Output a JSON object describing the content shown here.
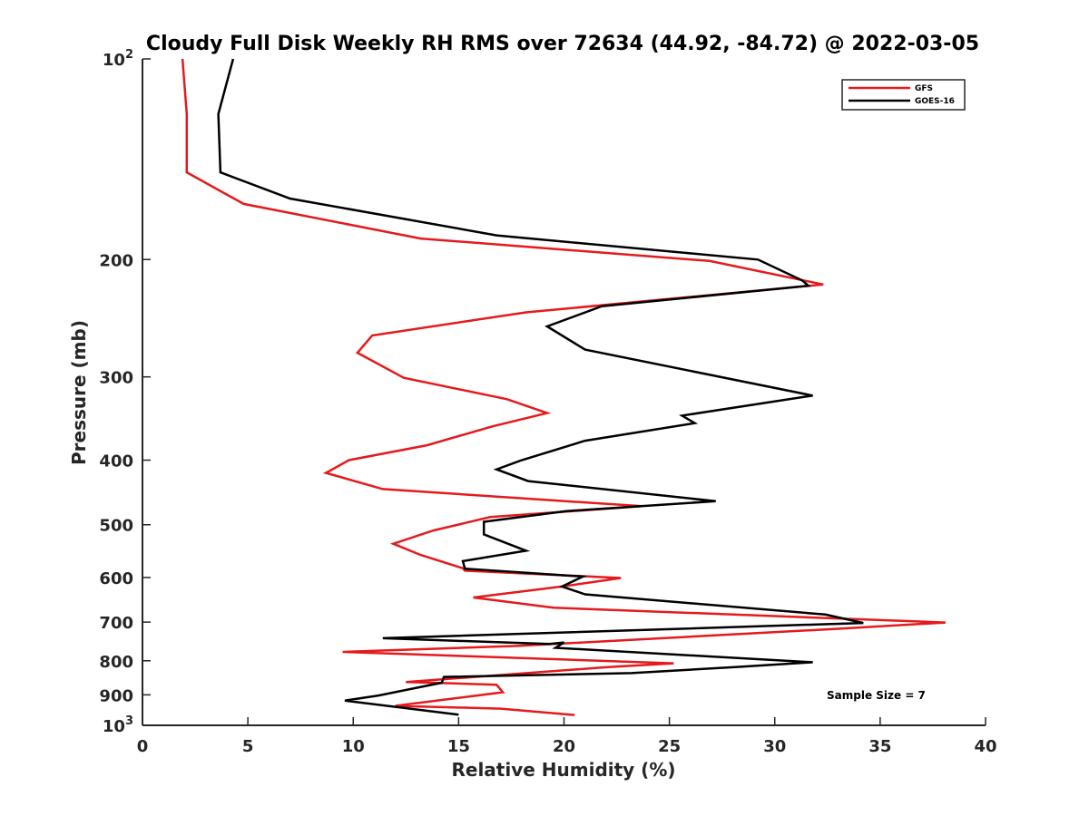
{
  "chart_data": {
    "type": "line",
    "title": "Cloudy Full Disk Weekly RH RMS over 72634 (44.92, -84.72) @ 2022-03-05",
    "xlabel": "Relative Humidity (%)",
    "ylabel": "Pressure (mb)",
    "xlim": [
      0,
      40
    ],
    "ylim": [
      100,
      1000
    ],
    "y_scale": "log",
    "y_reversed": true,
    "x_ticks": [
      0,
      5,
      10,
      15,
      20,
      25,
      30,
      35,
      40
    ],
    "y_ticks": [
      {
        "value": 100,
        "base": "10",
        "exp": "2"
      },
      {
        "value": 200,
        "label": "200"
      },
      {
        "value": 300,
        "label": "300"
      },
      {
        "value": 400,
        "label": "400"
      },
      {
        "value": 500,
        "label": "500"
      },
      {
        "value": 600,
        "label": "600"
      },
      {
        "value": 700,
        "label": "700"
      },
      {
        "value": 800,
        "label": "800"
      },
      {
        "value": 900,
        "label": "900"
      },
      {
        "value": 1000,
        "base": "10",
        "exp": "3"
      }
    ],
    "grid": false,
    "legend_position": "top-right",
    "annotation": "Sample Size = 7",
    "series": [
      {
        "name": "GFS",
        "color": "#e41a1c",
        "points": [
          [
            1.9,
            100
          ],
          [
            2.1,
            121
          ],
          [
            2.1,
            148
          ],
          [
            4.8,
            165
          ],
          [
            13.2,
            186
          ],
          [
            26.9,
            201
          ],
          [
            32.3,
            218
          ],
          [
            18.2,
            240
          ],
          [
            10.9,
            260
          ],
          [
            10.2,
            276
          ],
          [
            12.4,
            301
          ],
          [
            17.3,
            324
          ],
          [
            19.2,
            340
          ],
          [
            16.6,
            356
          ],
          [
            13.5,
            380
          ],
          [
            9.8,
            400
          ],
          [
            8.7,
            418
          ],
          [
            11.4,
            442
          ],
          [
            23.7,
            469
          ],
          [
            16.5,
            487
          ],
          [
            13.8,
            510
          ],
          [
            11.9,
            534
          ],
          [
            13.2,
            555
          ],
          [
            15.2,
            581
          ],
          [
            15.3,
            586
          ],
          [
            22.7,
            601
          ],
          [
            19.9,
            619
          ],
          [
            15.7,
            643
          ],
          [
            19.5,
            666
          ],
          [
            38.1,
            701
          ],
          [
            33.1,
            716
          ],
          [
            17.8,
            760
          ],
          [
            9.5,
            776
          ],
          [
            25.2,
            807
          ],
          [
            22.0,
            818
          ],
          [
            12.5,
            861
          ],
          [
            16.8,
            869
          ],
          [
            17.1,
            892
          ],
          [
            12.0,
            935
          ],
          [
            17.0,
            944
          ],
          [
            20.5,
            965
          ]
        ]
      },
      {
        "name": "GOES-16",
        "color": "#000000",
        "points": [
          [
            4.3,
            100
          ],
          [
            3.6,
            121
          ],
          [
            3.7,
            148
          ],
          [
            7.0,
            162
          ],
          [
            16.8,
            184
          ],
          [
            29.2,
            200
          ],
          [
            31.3,
            215
          ],
          [
            31.6,
            219
          ],
          [
            21.8,
            235
          ],
          [
            19.2,
            252
          ],
          [
            21.0,
            273
          ],
          [
            31.8,
            320
          ],
          [
            25.6,
            343
          ],
          [
            26.2,
            352
          ],
          [
            21.0,
            374
          ],
          [
            18.0,
            400
          ],
          [
            16.8,
            413
          ],
          [
            18.3,
            430
          ],
          [
            27.2,
            461
          ],
          [
            20.1,
            477
          ],
          [
            16.2,
            495
          ],
          [
            16.2,
            517
          ],
          [
            18.2,
            547
          ],
          [
            15.2,
            567
          ],
          [
            15.3,
            582
          ],
          [
            20.9,
            598
          ],
          [
            19.9,
            619
          ],
          [
            21.0,
            636
          ],
          [
            32.4,
            682
          ],
          [
            34.2,
            702
          ],
          [
            11.4,
            740
          ],
          [
            19.3,
            755
          ],
          [
            20.0,
            751
          ],
          [
            19.6,
            765
          ],
          [
            31.8,
            804
          ],
          [
            28.3,
            817
          ],
          [
            23.2,
            835
          ],
          [
            14.3,
            846
          ],
          [
            14.2,
            863
          ],
          [
            11.2,
            902
          ],
          [
            9.6,
            918
          ],
          [
            15.0,
            964
          ]
        ]
      }
    ]
  }
}
